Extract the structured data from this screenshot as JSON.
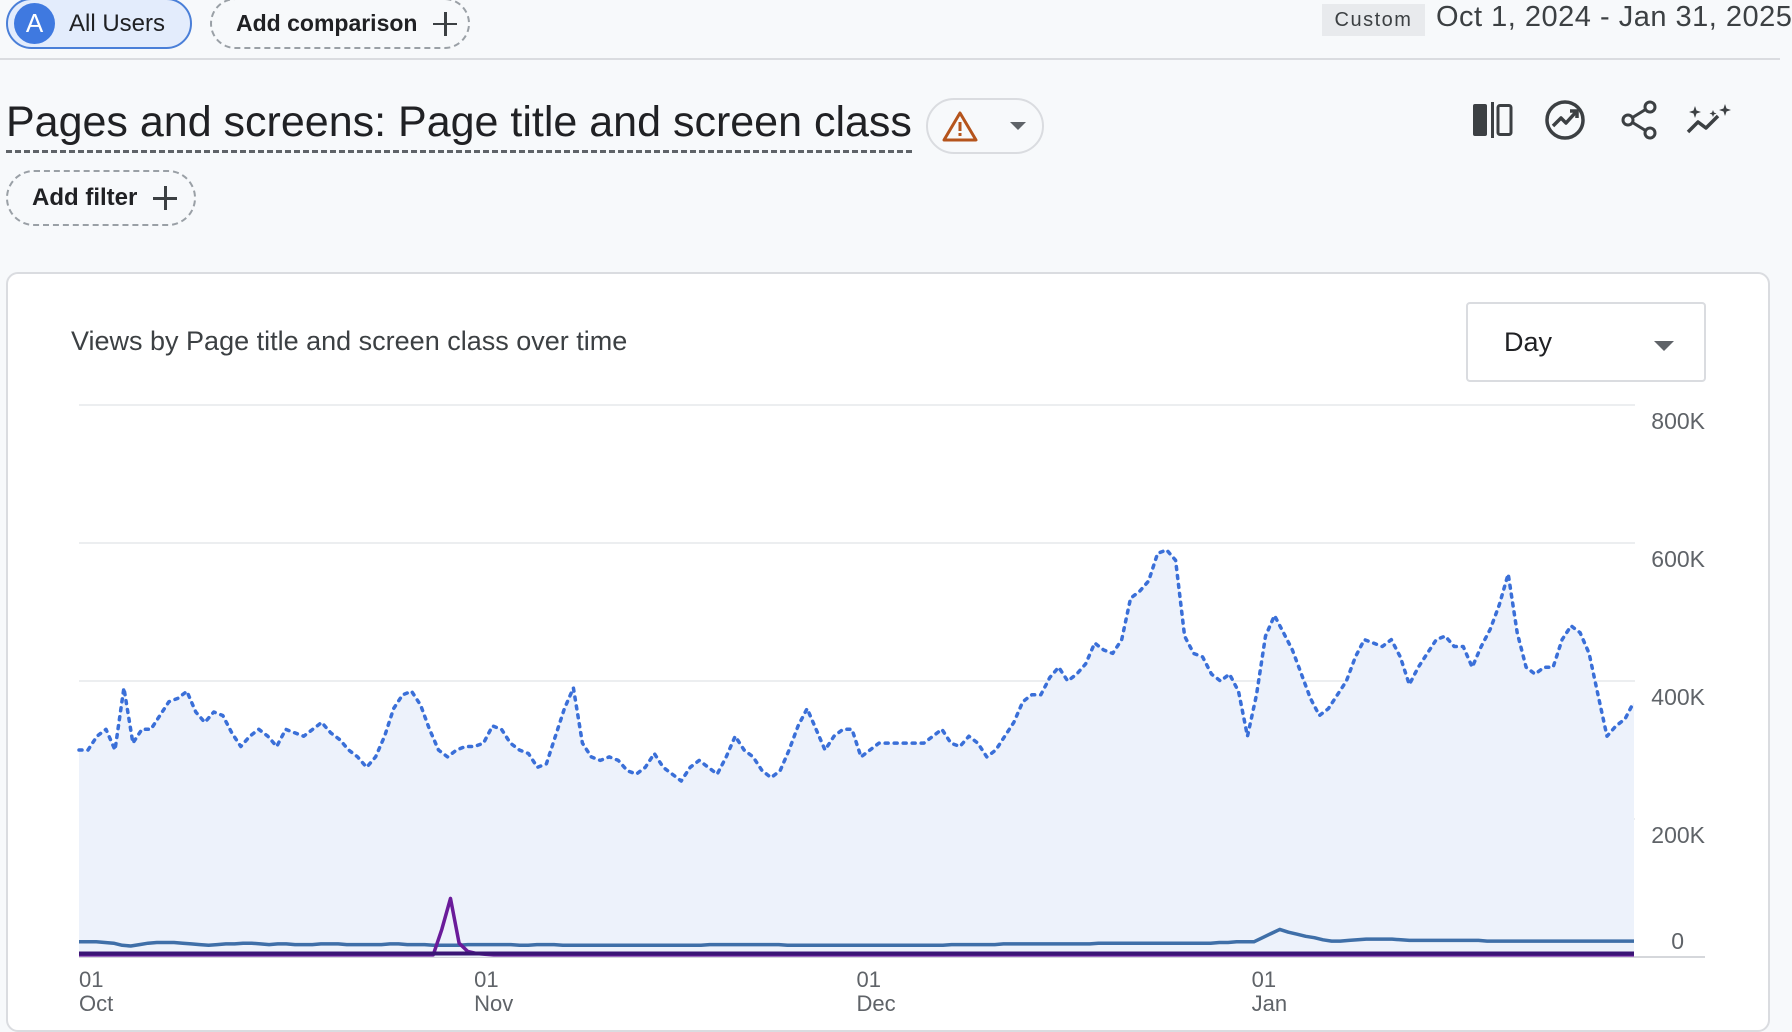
{
  "header": {
    "segment": {
      "avatar_letter": "A",
      "label": "All Users"
    },
    "add_comparison_label": "Add comparison",
    "range_tag": "Custom",
    "date_range": "Oct 1, 2024 - Jan 31, 2025"
  },
  "report": {
    "title": "Pages and screens: Page title and screen class",
    "warning_icon": "warning-triangle-icon",
    "add_filter_label": "Add filter",
    "toolbar_icons": [
      "compare-columns-icon",
      "insights-icon",
      "share-icon",
      "sparkle-trend-icon"
    ]
  },
  "card": {
    "title": "Views by Page title and screen class over time",
    "period": "Day"
  },
  "colors": {
    "total_dotted": "#3a6fd8",
    "area_fill": "#edf2fb",
    "series_teal": "#3f6fa8",
    "series_purple": "#6a1b9a",
    "series_dark": "#3a1575",
    "gridline": "#e6e8eb",
    "warning": "#b5541c"
  },
  "chart_data": {
    "type": "line",
    "x_start": "2024-10-01",
    "x_end": "2025-01-31",
    "x_ticks": [
      {
        "date": "2024-10-01",
        "day": "01",
        "month": "Oct"
      },
      {
        "date": "2024-11-01",
        "day": "01",
        "month": "Nov"
      },
      {
        "date": "2024-12-01",
        "day": "01",
        "month": "Dec"
      },
      {
        "date": "2025-01-01",
        "day": "01",
        "month": "Jan"
      }
    ],
    "y_ticks": [
      "0",
      "200K",
      "400K",
      "600K",
      "800K"
    ],
    "ylim": [
      0,
      800000
    ],
    "y_axis_position": "right",
    "grid": true,
    "series": [
      {
        "style": "dotted-area",
        "values": [
          300000,
          300000,
          320000,
          330000,
          300000,
          390000,
          310000,
          330000,
          330000,
          350000,
          370000,
          375000,
          385000,
          355000,
          340000,
          355000,
          350000,
          325000,
          305000,
          320000,
          330000,
          320000,
          305000,
          330000,
          325000,
          320000,
          330000,
          340000,
          325000,
          315000,
          300000,
          290000,
          275000,
          290000,
          320000,
          360000,
          380000,
          385000,
          365000,
          330000,
          300000,
          290000,
          300000,
          305000,
          305000,
          310000,
          335000,
          330000,
          310000,
          300000,
          295000,
          275000,
          280000,
          320000,
          360000,
          390000,
          310000,
          290000,
          285000,
          290000,
          285000,
          270000,
          265000,
          275000,
          295000,
          275000,
          265000,
          255000,
          275000,
          285000,
          275000,
          265000,
          290000,
          320000,
          300000,
          290000,
          270000,
          260000,
          270000,
          300000,
          335000,
          360000,
          330000,
          300000,
          320000,
          330000,
          330000,
          290000,
          300000,
          310000,
          310000,
          310000,
          310000,
          310000,
          310000,
          320000,
          330000,
          310000,
          305000,
          320000,
          310000,
          290000,
          300000,
          320000,
          340000,
          370000,
          380000,
          380000,
          405000,
          420000,
          400000,
          410000,
          425000,
          455000,
          445000,
          440000,
          460000,
          520000,
          530000,
          545000,
          585000,
          590000,
          575000,
          465000,
          440000,
          435000,
          410000,
          400000,
          410000,
          385000,
          320000,
          380000,
          465000,
          495000,
          470000,
          445000,
          410000,
          375000,
          350000,
          360000,
          380000,
          400000,
          435000,
          460000,
          455000,
          450000,
          460000,
          435000,
          395000,
          420000,
          440000,
          460000,
          465000,
          450000,
          450000,
          420000,
          450000,
          475000,
          510000,
          555000,
          470000,
          420000,
          410000,
          420000,
          420000,
          460000,
          480000,
          470000,
          440000,
          380000,
          320000,
          335000,
          345000,
          370000
        ]
      },
      {
        "style": "line",
        "values": [
          22000,
          22000,
          22000,
          21000,
          20000,
          17000,
          16000,
          18000,
          20000,
          21000,
          21000,
          21000,
          20000,
          19000,
          18000,
          17000,
          18000,
          19000,
          19000,
          20000,
          20000,
          19000,
          18000,
          19000,
          19000,
          18000,
          18000,
          18000,
          19000,
          19000,
          19000,
          18000,
          18000,
          18000,
          18000,
          18000,
          19000,
          19000,
          18000,
          18000,
          18000,
          17000,
          17000,
          17000,
          17000,
          18000,
          18000,
          18000,
          18000,
          18000,
          18000,
          17000,
          17000,
          18000,
          18000,
          18000,
          17000,
          17000,
          17000,
          17000,
          17000,
          17000,
          17000,
          17000,
          17000,
          17000,
          17000,
          17000,
          17000,
          17000,
          17000,
          17000,
          17000,
          18000,
          18000,
          18000,
          18000,
          18000,
          18000,
          18000,
          18000,
          18000,
          17000,
          17000,
          17000,
          17000,
          17000,
          17000,
          17000,
          17000,
          17000,
          17000,
          17000,
          17000,
          17000,
          17000,
          17000,
          17000,
          17000,
          17000,
          17000,
          18000,
          18000,
          18000,
          18000,
          18000,
          18000,
          19000,
          19000,
          19000,
          19000,
          19000,
          19000,
          19000,
          19000,
          19000,
          19000,
          19000,
          20000,
          20000,
          20000,
          20000,
          20000,
          20000,
          20000,
          20000,
          20000,
          20000,
          20000,
          20000,
          20000,
          20000,
          21000,
          21000,
          22000,
          22000,
          22000,
          28000,
          34000,
          40000,
          36000,
          33000,
          30000,
          28000,
          25000,
          23000,
          23000,
          24000,
          25000,
          26000,
          26000,
          26000,
          26000,
          25000,
          24000,
          24000,
          24000,
          24000,
          24000,
          24000,
          24000,
          24000,
          24000,
          23000,
          23000,
          23000,
          23000,
          23000,
          23000,
          23000,
          23000,
          23000,
          23000,
          23000,
          23000,
          23000,
          23000,
          23000,
          23000,
          23000,
          23000
        ]
      },
      {
        "style": "line",
        "values": [
          3000,
          3000,
          3000,
          3000,
          3000,
          3000,
          3000,
          3000,
          3000,
          3000,
          3000,
          3000,
          3000,
          3000,
          3000,
          3000,
          3000,
          3000,
          3000,
          3000,
          3000,
          3000,
          3000,
          3000,
          3000,
          3000,
          3000,
          3000,
          3000,
          3000,
          3000,
          3000,
          3000,
          3000,
          3000,
          3000,
          3000,
          3000,
          3000,
          3000,
          3000,
          3000,
          40000,
          85000,
          20000,
          8000,
          5000,
          4000,
          3000,
          3000,
          3000,
          3000,
          3000,
          3000,
          3000,
          3000,
          3000,
          3000,
          3000,
          3000,
          3000,
          3000,
          3000,
          3000,
          3000,
          3000,
          3000,
          3000,
          3000,
          3000,
          3000,
          3000,
          3000,
          3000,
          3000,
          3000,
          3000,
          3000,
          3000,
          3000,
          3000,
          3000,
          3000,
          3000,
          3000,
          3000,
          3000,
          3000,
          3000,
          3000,
          3000,
          3000,
          3000,
          3000,
          3000,
          3000,
          3000,
          3000,
          3000,
          3000,
          3000,
          3000,
          3000,
          3000,
          3000,
          3000,
          3000,
          3000,
          3000,
          3000,
          3000,
          3000,
          3000,
          3000,
          3000,
          3000,
          3000,
          3000,
          3000,
          3000,
          3000,
          3000,
          3000,
          3000,
          3000,
          3000,
          3000,
          3000,
          3000,
          3000,
          3000,
          3000,
          3000,
          3000,
          3000,
          3000,
          3000,
          3000,
          3000,
          3000,
          3000,
          3000,
          3000,
          3000,
          3000,
          3000,
          3000,
          3000,
          3000,
          3000,
          3000,
          3000,
          3000,
          3000,
          3000,
          3000,
          3000,
          3000,
          3000,
          3000,
          3000,
          3000,
          3000,
          3000,
          3000,
          3000,
          3000,
          3000,
          3000,
          3000,
          3000,
          3000,
          3000,
          3000,
          3000,
          3000,
          3000,
          3000,
          3000,
          3000,
          3000
        ]
      },
      {
        "style": "line",
        "values": [
          5000,
          5000,
          5000,
          5000,
          5000,
          5000,
          5000,
          5000,
          5000,
          5000,
          5000,
          5000,
          5000,
          5000,
          5000,
          5000,
          5000,
          5000,
          5000,
          5000,
          5000,
          5000,
          5000,
          5000,
          5000,
          5000,
          5000,
          5000,
          5000,
          5000,
          5000,
          5000,
          5000,
          5000,
          5000,
          5000,
          5000,
          5000,
          5000,
          5000,
          5000,
          5000,
          5000,
          5000,
          5000,
          5000,
          5000,
          5000,
          5000,
          5000,
          5000,
          5000,
          5000,
          5000,
          5000,
          5000,
          5000,
          5000,
          5000,
          5000,
          5000,
          5000,
          5000,
          5000,
          5000,
          5000,
          5000,
          5000,
          5000,
          5000,
          5000,
          5000,
          5000,
          5000,
          5000,
          5000,
          5000,
          5000,
          5000,
          5000,
          5000,
          5000,
          5000,
          5000,
          5000,
          5000,
          5000,
          5000,
          5000,
          5000,
          5000,
          5000,
          5000,
          5000,
          5000,
          5000,
          5000,
          5000,
          5000,
          5000,
          5000,
          5000,
          5000,
          5000,
          5000,
          5000,
          5000,
          5000,
          5000,
          5000,
          5000,
          5000,
          5000,
          5000,
          5000,
          5000,
          5000,
          5000,
          5000,
          5000,
          5000,
          5000,
          5000,
          5000,
          5000,
          5000,
          5000,
          5000,
          5000,
          5000,
          5000,
          5000,
          5000,
          5000,
          5000,
          5000,
          5000,
          5000,
          5000,
          5000,
          5000,
          5000,
          5000,
          5000,
          5000,
          5000,
          5000,
          5000,
          5000,
          5000,
          5000,
          5000,
          5000,
          5000,
          5000,
          5000,
          5000,
          5000,
          5000,
          5000,
          5000,
          5000,
          5000,
          5000,
          5000,
          5000,
          5000,
          5000,
          5000,
          5000,
          5000,
          5000,
          5000,
          5000,
          5000,
          5000,
          5000,
          5000,
          5000,
          5000,
          5000,
          5000,
          5000,
          5000,
          5000
        ]
      }
    ]
  }
}
